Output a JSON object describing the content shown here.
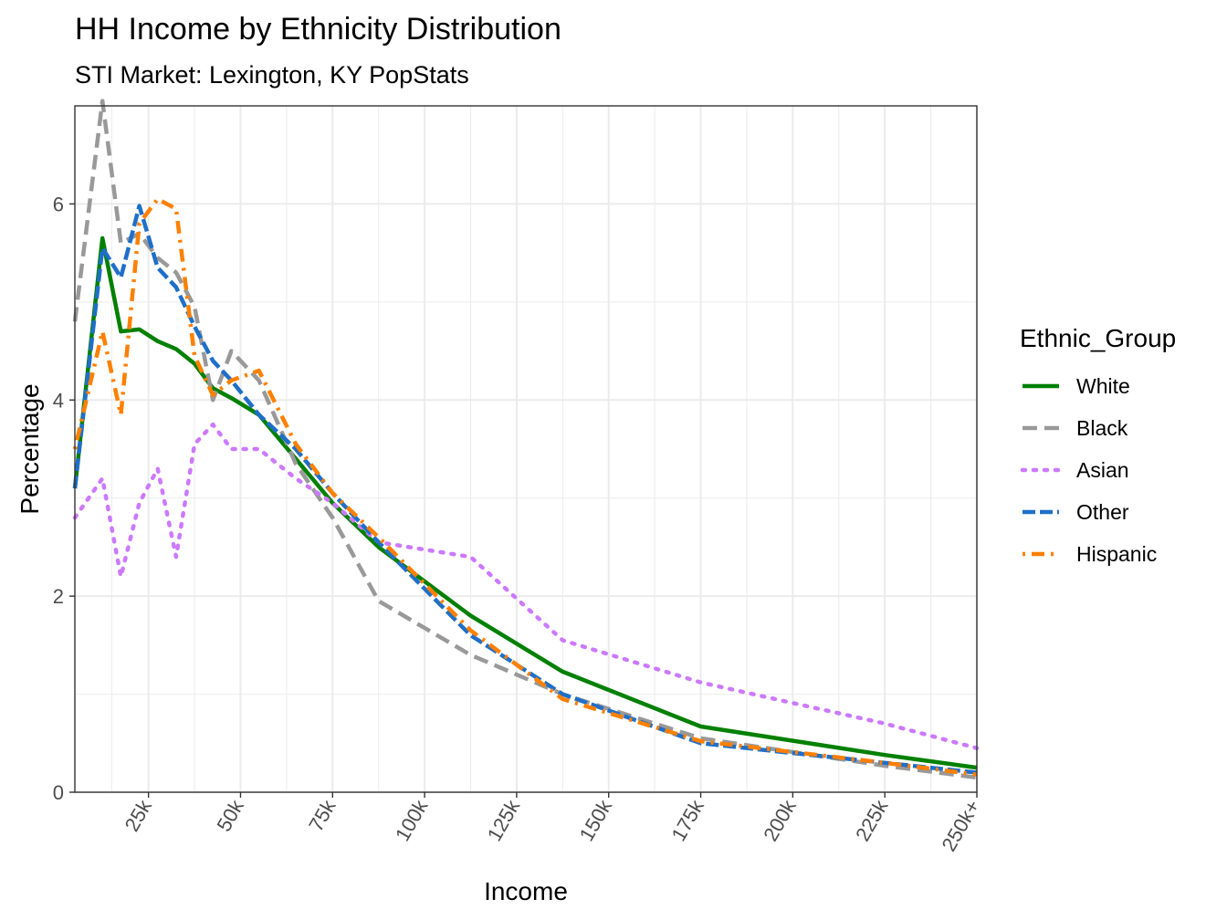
{
  "chart_data": {
    "type": "line",
    "title": "HH Income by Ethnicity Distribution",
    "subtitle": "STI Market: Lexington, KY PopStats",
    "xlabel": "Income",
    "ylabel": "Percentage",
    "xlim": [
      5,
      250
    ],
    "ylim": [
      0,
      7
    ],
    "x_ticks": [
      25,
      50,
      75,
      100,
      125,
      150,
      175,
      200,
      225,
      250
    ],
    "x_tick_labels": [
      "25k",
      "50k",
      "75k",
      "100k",
      "125k",
      "150k",
      "175k",
      "200k",
      "225k",
      "250k+"
    ],
    "y_ticks": [
      0,
      2,
      4,
      6
    ],
    "y_tick_labels": [
      "0",
      "2",
      "4",
      "6"
    ],
    "grid": true,
    "legend": {
      "title": "Ethnic_Group",
      "position": "right"
    },
    "x": [
      5,
      12.5,
      17.5,
      22.5,
      27.5,
      32.5,
      37.5,
      42.5,
      47.5,
      55,
      65,
      75,
      87.5,
      112.5,
      137.5,
      175,
      225,
      250
    ],
    "series": [
      {
        "name": "White",
        "color": "#008000",
        "dash": "solid",
        "values": [
          3.1,
          5.65,
          4.7,
          4.72,
          4.6,
          4.52,
          4.37,
          4.12,
          4.02,
          3.85,
          3.4,
          2.95,
          2.5,
          1.8,
          1.23,
          0.67,
          0.38,
          0.25
        ]
      },
      {
        "name": "Black",
        "color": "#999999",
        "dash": "dashed",
        "values": [
          4.8,
          7.05,
          5.6,
          5.7,
          5.45,
          5.3,
          4.95,
          4.0,
          4.5,
          4.2,
          3.35,
          2.8,
          1.95,
          1.4,
          1.0,
          0.55,
          0.27,
          0.15
        ]
      },
      {
        "name": "Asian",
        "color": "#CC79FF",
        "dash": "dotted",
        "values": [
          2.8,
          3.2,
          2.2,
          2.95,
          3.3,
          2.4,
          3.55,
          3.75,
          3.5,
          3.5,
          3.2,
          2.95,
          2.55,
          2.4,
          1.55,
          1.12,
          0.7,
          0.45
        ]
      },
      {
        "name": "Other",
        "color": "#1F6FC8",
        "dash": "longdash",
        "values": [
          3.1,
          5.55,
          5.25,
          5.98,
          5.35,
          5.15,
          4.75,
          4.4,
          4.2,
          3.85,
          3.5,
          3.05,
          2.55,
          1.6,
          1.0,
          0.5,
          0.3,
          0.2
        ]
      },
      {
        "name": "Hispanic",
        "color": "#FF8000",
        "dash": "dotdash",
        "values": [
          3.5,
          4.7,
          3.85,
          5.8,
          6.05,
          5.95,
          4.45,
          4.05,
          4.2,
          4.3,
          3.55,
          3.05,
          2.6,
          1.65,
          0.95,
          0.52,
          0.3,
          0.18
        ]
      }
    ]
  }
}
